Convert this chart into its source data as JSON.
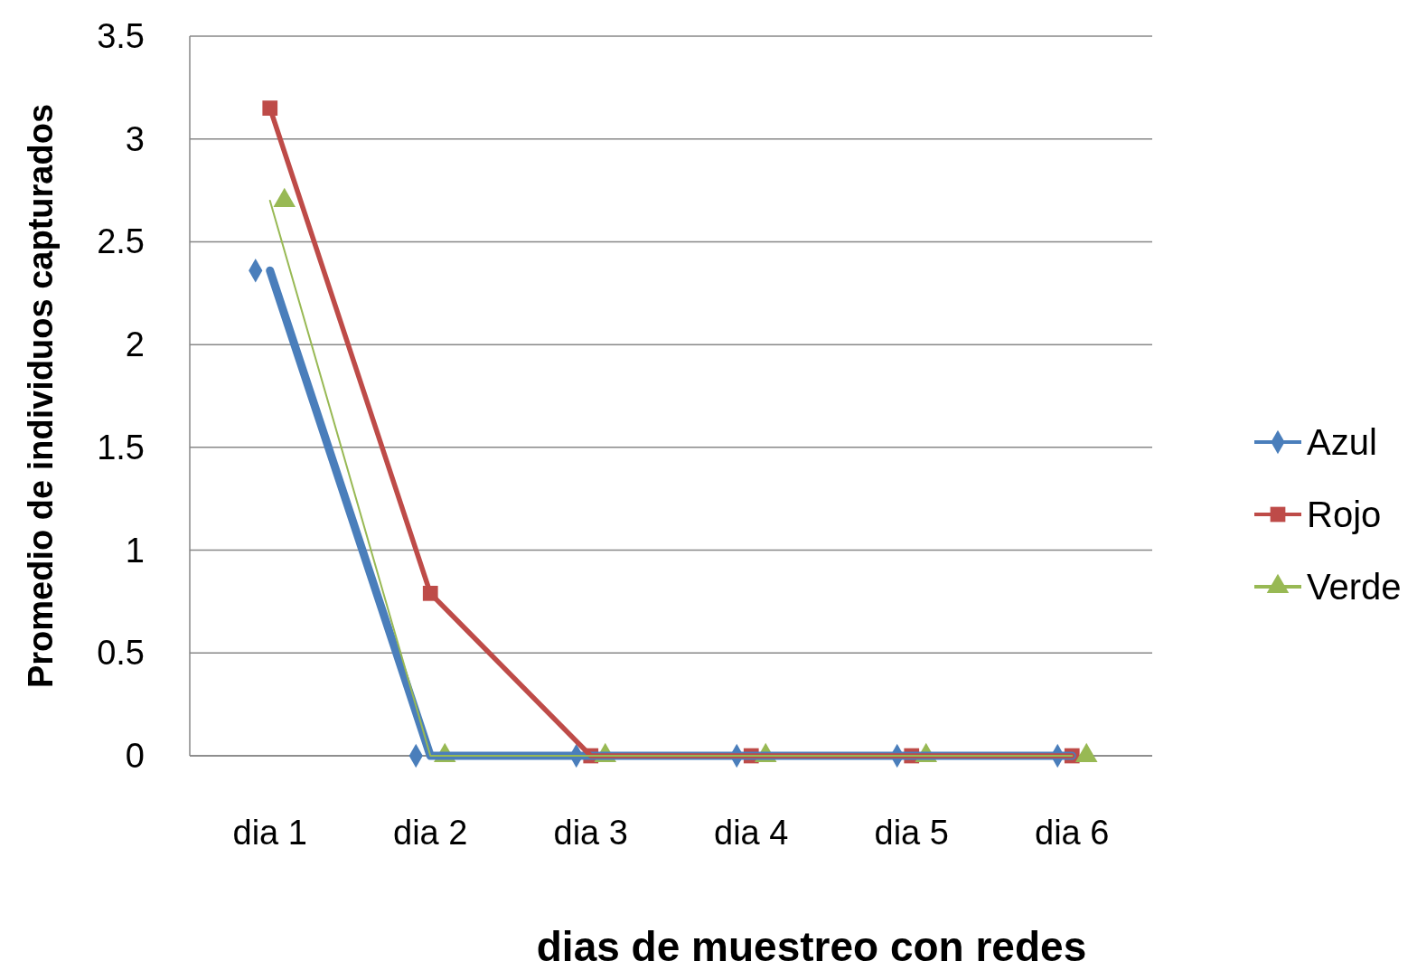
{
  "chart_data": {
    "type": "line",
    "xlabel": "dias de muestreo con redes",
    "ylabel": "Promedio de individuos capturados",
    "categories": [
      "dia 1",
      "dia 2",
      "dia 3",
      "dia 4",
      "dia 5",
      "dia 6"
    ],
    "series": [
      {
        "name": "Azul",
        "color": "#4a7ebb",
        "marker": "diamond",
        "values": [
          2.36,
          0,
          0,
          0,
          0,
          0
        ]
      },
      {
        "name": "Rojo",
        "color": "#be4b48",
        "marker": "square",
        "values": [
          3.15,
          0.79,
          0,
          0,
          0,
          0
        ]
      },
      {
        "name": "Verde",
        "color": "#98b954",
        "marker": "triangle",
        "values": [
          2.7,
          0,
          0,
          0,
          0,
          0
        ]
      }
    ],
    "ylim": [
      0,
      3.5
    ],
    "yticks": [
      0,
      0.5,
      1,
      1.5,
      2,
      2.5,
      3,
      3.5
    ],
    "grid": "y",
    "legend": "right",
    "line_style": "solid"
  }
}
